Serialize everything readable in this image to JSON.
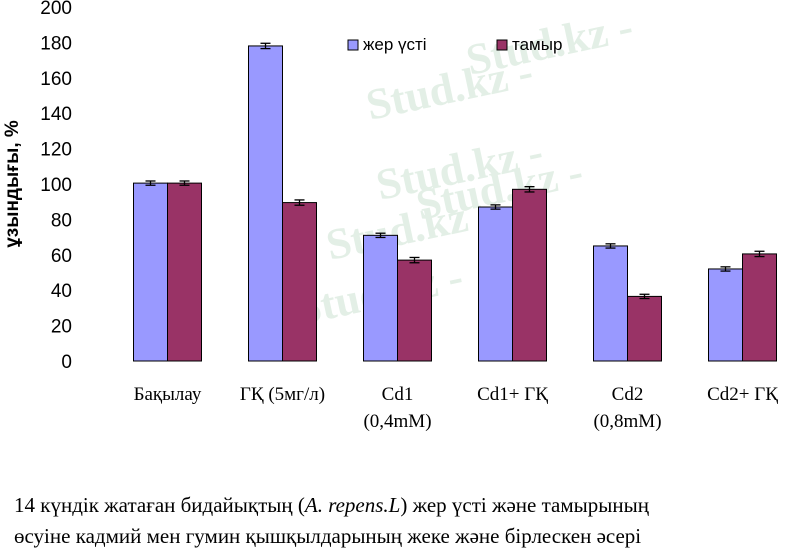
{
  "watermark": "Stud.kz",
  "chart_data": {
    "type": "bar",
    "ylabel": "ұзындығы, %",
    "ylim": [
      0,
      200
    ],
    "yticks": [
      0,
      20,
      40,
      60,
      80,
      100,
      120,
      140,
      160,
      180,
      200
    ],
    "categories": [
      [
        "Бақылау"
      ],
      [
        "ГҚ (5мг/л)"
      ],
      [
        "Cd1",
        "(0,4mM)"
      ],
      [
        "Cd1+ ГҚ"
      ],
      [
        "Cd2",
        "(0,8mM)"
      ],
      [
        "Cd2+ ГҚ"
      ]
    ],
    "series": [
      {
        "name": "жер үсті",
        "color": "#9999ff",
        "values": [
          100.5,
          178,
          71,
          87,
          65,
          52
        ],
        "errors": [
          1.2,
          1.5,
          1.2,
          1.2,
          1.2,
          1.2
        ]
      },
      {
        "name": "тамыр",
        "color": "#993366",
        "values": [
          100.5,
          89.5,
          57,
          97,
          36.5,
          60.5
        ],
        "errors": [
          1.2,
          1.5,
          1.5,
          1.5,
          1.2,
          1.5
        ]
      }
    ],
    "legend_position": "top-right",
    "grid": false
  },
  "caption": {
    "line1_before": "14 күндік жатаған бидайықтың (",
    "line1_italic": "A. repens.L",
    "line1_after": ") жер үсті және тамырының",
    "line2": "өсуіне кадмий мен гумин қышқылдарының жеке және бірлескен әсері"
  }
}
